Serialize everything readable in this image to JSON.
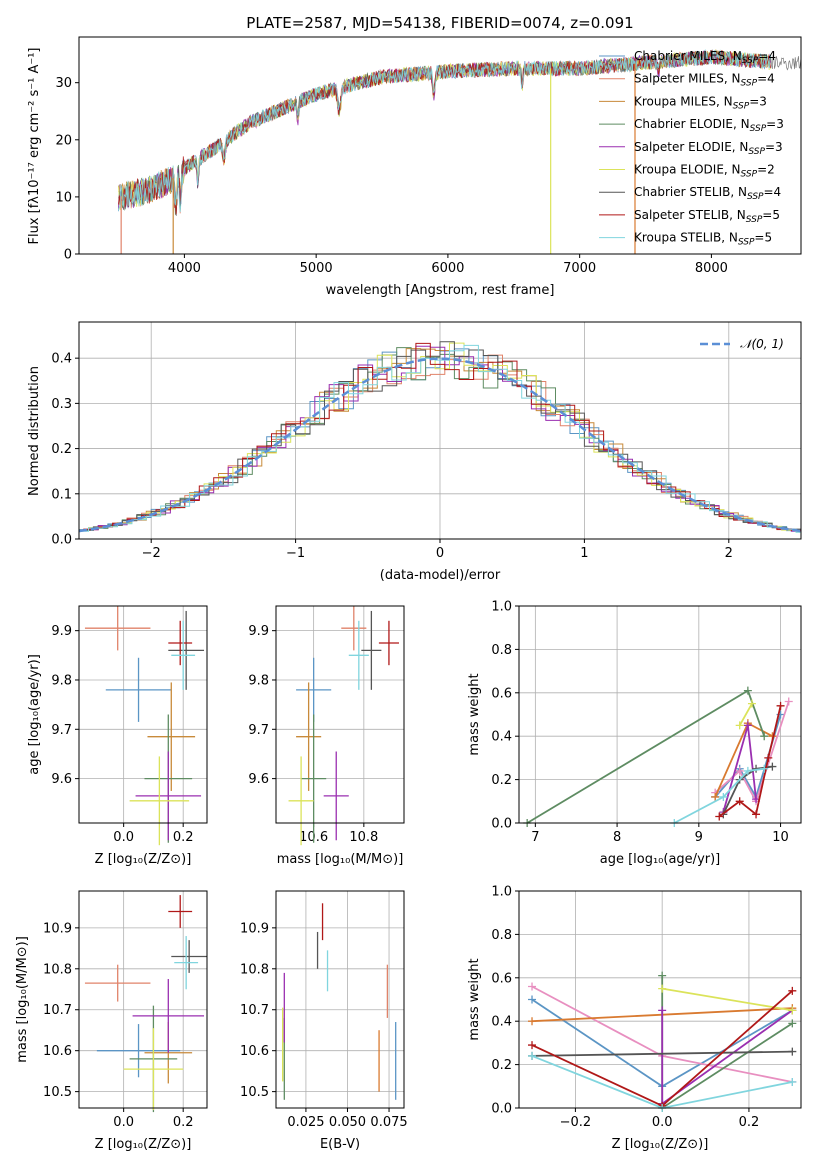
{
  "figure": {
    "title": "PLATE=2587, MJD=54138, FIBERID=0074, z=0.091"
  },
  "colors": [
    "#5b95c5",
    "#e0836a",
    "#c88a3a",
    "#5e8c62",
    "#9a2fb0",
    "#dbe35a",
    "#555555",
    "#b01818",
    "#80d5de"
  ],
  "chart_data": [
    {
      "id": "spectrum",
      "type": "line",
      "xlabel": "wavelength [Angstrom, rest frame]",
      "ylabel": "Flux [fλ10⁻¹⁷ erg cm⁻² s⁻¹ A⁻¹]",
      "xlim": [
        3200,
        8680
      ],
      "ylim": [
        0,
        38
      ],
      "xticks": [
        4000,
        5000,
        6000,
        7000,
        8000
      ],
      "yticks": [
        0,
        10,
        20,
        30
      ],
      "continuum": {
        "x": [
          3500,
          3700,
          3900,
          4000,
          4200,
          4500,
          5000,
          5500,
          6000,
          6500,
          7000,
          7500,
          8000,
          8500
        ],
        "y": [
          10,
          11,
          13,
          15,
          18,
          23,
          28,
          31,
          32,
          32.5,
          32.5,
          33.5,
          34.5,
          33.5
        ]
      },
      "legend_loc": "upper right",
      "legend": [
        {
          "label": "Chabrier MILES, N",
          "sub": "SSP",
          "eq": "=4",
          "color": "#5b95c5"
        },
        {
          "label": "Salpeter MILES, N",
          "sub": "SSP",
          "eq": "=4",
          "color": "#e0836a"
        },
        {
          "label": "Kroupa MILES, N",
          "sub": "SSP",
          "eq": "=3",
          "color": "#c88a3a"
        },
        {
          "label": "Chabrier ELODIE, N",
          "sub": "SSP",
          "eq": "=3",
          "color": "#5e8c62"
        },
        {
          "label": "Salpeter ELODIE, N",
          "sub": "SSP",
          "eq": "=3",
          "color": "#9a2fb0"
        },
        {
          "label": "Kroupa ELODIE, N",
          "sub": "SSP",
          "eq": "=2",
          "color": "#dbe35a"
        },
        {
          "label": "Chabrier STELIB, N",
          "sub": "SSP",
          "eq": "=4",
          "color": "#555555"
        },
        {
          "label": "Salpeter STELIB, N",
          "sub": "SSP",
          "eq": "=5",
          "color": "#b01818"
        },
        {
          "label": "Kroupa STELIB, N",
          "sub": "SSP",
          "eq": "=5",
          "color": "#80d5de"
        }
      ]
    },
    {
      "id": "residuals",
      "type": "histogram",
      "xlabel": "(data-model)/error",
      "ylabel": "Normed distribution",
      "xlim": [
        -2.5,
        2.5
      ],
      "ylim": [
        0,
        0.48
      ],
      "xticks": [
        -2,
        -1,
        0,
        1,
        2
      ],
      "yticks": [
        0.0,
        0.1,
        0.2,
        0.3,
        0.4
      ],
      "grid": true,
      "bin_width": 0.1,
      "reference_curve": {
        "name": "𝒩(0, 1)",
        "mean": 0,
        "sigma": 1,
        "color": "#5b8fd6"
      },
      "legend_loc": "upper right"
    },
    {
      "id": "age_vs_Z",
      "type": "errorbar",
      "xlabel": "Z [log₁₀(Z/Z⊙)]",
      "ylabel": "age  [log₁₀(age/yr)]",
      "xlim": [
        -0.15,
        0.28
      ],
      "ylim": [
        9.51,
        9.95
      ],
      "xticks": [
        0.0,
        0.2
      ],
      "yticks": [
        9.6,
        9.7,
        9.8,
        9.9
      ],
      "grid": true,
      "points": [
        {
          "x": 0.05,
          "xerr": 0.11,
          "y": 9.78,
          "yerr": 0.065,
          "color": "#5b95c5"
        },
        {
          "x": -0.02,
          "xerr": 0.11,
          "y": 9.905,
          "yerr": 0.045,
          "color": "#e0836a"
        },
        {
          "x": 0.16,
          "xerr": 0.08,
          "y": 9.685,
          "yerr": 0.11,
          "color": "#c88a3a"
        },
        {
          "x": 0.15,
          "xerr": 0.08,
          "y": 9.6,
          "yerr": 0.13,
          "color": "#5e8c62"
        },
        {
          "x": 0.15,
          "xerr": 0.11,
          "y": 9.565,
          "yerr": 0.09,
          "color": "#9a2fb0"
        },
        {
          "x": 0.12,
          "xerr": 0.1,
          "y": 9.555,
          "yerr": 0.09,
          "color": "#dbe35a"
        },
        {
          "x": 0.21,
          "xerr": 0.06,
          "y": 9.86,
          "yerr": 0.08,
          "color": "#555555"
        },
        {
          "x": 0.19,
          "xerr": 0.04,
          "y": 9.875,
          "yerr": 0.045,
          "color": "#b01818"
        },
        {
          "x": 0.2,
          "xerr": 0.04,
          "y": 9.85,
          "yerr": 0.07,
          "color": "#80d5de"
        }
      ]
    },
    {
      "id": "age_vs_mass",
      "type": "errorbar",
      "xlabel": "mass [log₁₀(M/M⊙)]",
      "ylabel": "",
      "xlim": [
        10.45,
        10.96
      ],
      "ylim": [
        9.51,
        9.95
      ],
      "xticks": [
        10.6,
        10.8
      ],
      "yticks": [
        9.6,
        9.7,
        9.8,
        9.9
      ],
      "grid": true,
      "points": [
        {
          "x": 10.6,
          "xerr": 0.07,
          "y": 9.78,
          "yerr": 0.065,
          "color": "#5b95c5"
        },
        {
          "x": 10.76,
          "xerr": 0.05,
          "y": 9.905,
          "yerr": 0.045,
          "color": "#e0836a"
        },
        {
          "x": 10.58,
          "xerr": 0.05,
          "y": 9.685,
          "yerr": 0.11,
          "color": "#c88a3a"
        },
        {
          "x": 10.6,
          "xerr": 0.05,
          "y": 9.6,
          "yerr": 0.13,
          "color": "#5e8c62"
        },
        {
          "x": 10.69,
          "xerr": 0.05,
          "y": 9.565,
          "yerr": 0.09,
          "color": "#9a2fb0"
        },
        {
          "x": 10.55,
          "xerr": 0.05,
          "y": 9.555,
          "yerr": 0.09,
          "color": "#dbe35a"
        },
        {
          "x": 10.83,
          "xerr": 0.04,
          "y": 9.86,
          "yerr": 0.08,
          "color": "#555555"
        },
        {
          "x": 10.9,
          "xerr": 0.04,
          "y": 9.875,
          "yerr": 0.045,
          "color": "#b01818"
        },
        {
          "x": 10.78,
          "xerr": 0.04,
          "y": 9.85,
          "yerr": 0.07,
          "color": "#80d5de"
        }
      ]
    },
    {
      "id": "weight_vs_age",
      "type": "line",
      "xlabel": "age  [log₁₀(age/yr)]",
      "ylabel": "mass weight",
      "xlim": [
        6.8,
        10.25
      ],
      "ylim": [
        0,
        1
      ],
      "xticks": [
        7,
        8,
        9,
        10
      ],
      "yticks": [
        0.0,
        0.2,
        0.4,
        0.6,
        0.8,
        1.0
      ],
      "grid": true,
      "series": [
        {
          "color": "#5b95c5",
          "x": [
            9.2,
            9.5,
            9.7,
            10.0
          ],
          "y": [
            0.12,
            0.25,
            0.12,
            0.5
          ]
        },
        {
          "color": "#e88fc0",
          "x": [
            9.2,
            9.5,
            9.7,
            10.1
          ],
          "y": [
            0.14,
            0.24,
            0.1,
            0.56
          ]
        },
        {
          "color": "#d97a30",
          "x": [
            9.2,
            9.6,
            9.9
          ],
          "y": [
            0.12,
            0.46,
            0.4
          ]
        },
        {
          "color": "#5e8c62",
          "x": [
            6.9,
            9.6,
            9.8
          ],
          "y": [
            0.0,
            0.61,
            0.4
          ]
        },
        {
          "color": "#9a2fb0",
          "x": [
            9.3,
            9.6,
            9.7
          ],
          "y": [
            0.05,
            0.45,
            0.11
          ]
        },
        {
          "color": "#dbe35a",
          "x": [
            9.5,
            9.65
          ],
          "y": [
            0.45,
            0.55
          ]
        },
        {
          "color": "#555555",
          "x": [
            9.3,
            9.5,
            9.7,
            9.9
          ],
          "y": [
            0.04,
            0.2,
            0.25,
            0.26
          ]
        },
        {
          "color": "#b01818",
          "x": [
            9.25,
            9.5,
            9.7,
            9.85,
            10.0
          ],
          "y": [
            0.03,
            0.1,
            0.04,
            0.3,
            0.54
          ]
        },
        {
          "color": "#80d5de",
          "x": [
            8.7,
            9.3,
            9.6,
            9.8
          ],
          "y": [
            0.0,
            0.12,
            0.24,
            0.25
          ]
        }
      ]
    },
    {
      "id": "mass_vs_Z",
      "type": "errorbar",
      "xlabel": "Z [log₁₀(Z/Z⊙)]",
      "ylabel": "mass [log₁₀(M/M⊙)]",
      "xlim": [
        -0.15,
        0.28
      ],
      "ylim": [
        10.46,
        10.99
      ],
      "xticks": [
        0.0,
        0.2
      ],
      "yticks": [
        10.5,
        10.6,
        10.7,
        10.8,
        10.9
      ],
      "grid": true,
      "points": [
        {
          "x": 0.05,
          "xerr": 0.14,
          "y": 10.6,
          "yerr": 0.065,
          "color": "#5b95c5"
        },
        {
          "x": -0.02,
          "xerr": 0.11,
          "y": 10.765,
          "yerr": 0.045,
          "color": "#e0836a"
        },
        {
          "x": 0.15,
          "xerr": 0.08,
          "y": 10.595,
          "yerr": 0.075,
          "color": "#c88a3a"
        },
        {
          "x": 0.1,
          "xerr": 0.08,
          "y": 10.58,
          "yerr": 0.13,
          "color": "#5e8c62"
        },
        {
          "x": 0.15,
          "xerr": 0.12,
          "y": 10.685,
          "yerr": 0.09,
          "color": "#9a2fb0"
        },
        {
          "x": 0.1,
          "xerr": 0.1,
          "y": 10.555,
          "yerr": 0.1,
          "color": "#dbe35a"
        },
        {
          "x": 0.22,
          "xerr": 0.06,
          "y": 10.83,
          "yerr": 0.04,
          "color": "#555555"
        },
        {
          "x": 0.19,
          "xerr": 0.04,
          "y": 10.94,
          "yerr": 0.04,
          "color": "#b01818"
        },
        {
          "x": 0.21,
          "xerr": 0.04,
          "y": 10.815,
          "yerr": 0.065,
          "color": "#80d5de"
        }
      ]
    },
    {
      "id": "mass_vs_EBV",
      "type": "errorbar",
      "xlabel": "E(B-V)",
      "ylabel": "",
      "xlim": [
        0.007,
        0.084
      ],
      "ylim": [
        10.46,
        10.99
      ],
      "xticks": [
        0.025,
        0.05,
        0.075
      ],
      "xtick_labels": [
        "0.025",
        "0.050",
        "0.075"
      ],
      "yticks": [
        10.5,
        10.6,
        10.7,
        10.8,
        10.9
      ],
      "grid": true,
      "points": [
        {
          "x": 0.079,
          "xerr": 0,
          "y": 10.575,
          "yerr": 0.095,
          "color": "#5b95c5"
        },
        {
          "x": 0.074,
          "xerr": 0,
          "y": 10.745,
          "yerr": 0.065,
          "color": "#e0836a"
        },
        {
          "x": 0.069,
          "xerr": 0,
          "y": 10.575,
          "yerr": 0.075,
          "color": "#d97a30"
        },
        {
          "x": 0.012,
          "xerr": 0,
          "y": 10.58,
          "yerr": 0.1,
          "color": "#5e8c62"
        },
        {
          "x": 0.012,
          "xerr": 0,
          "y": 10.705,
          "yerr": 0.085,
          "color": "#9a2fb0"
        },
        {
          "x": 0.011,
          "xerr": 0,
          "y": 10.615,
          "yerr": 0.09,
          "color": "#dbe35a"
        },
        {
          "x": 0.032,
          "xerr": 0,
          "y": 10.845,
          "yerr": 0.045,
          "color": "#555555"
        },
        {
          "x": 0.035,
          "xerr": 0,
          "y": 10.915,
          "yerr": 0.045,
          "color": "#b01818"
        },
        {
          "x": 0.038,
          "xerr": 0,
          "y": 10.795,
          "yerr": 0.05,
          "color": "#80d5de"
        }
      ]
    },
    {
      "id": "weight_vs_Z",
      "type": "line",
      "xlabel": "Z [log₁₀(Z/Z⊙)]",
      "ylabel": "mass weight",
      "xlim": [
        -0.33,
        0.32
      ],
      "ylim": [
        0,
        1
      ],
      "xticks": [
        -0.2,
        0.0,
        0.2
      ],
      "yticks": [
        0.0,
        0.2,
        0.4,
        0.6,
        0.8,
        1.0
      ],
      "grid": true,
      "series": [
        {
          "color": "#5b95c5",
          "x": [
            -0.3,
            0.0,
            0.3
          ],
          "y": [
            0.5,
            0.1,
            0.45
          ]
        },
        {
          "color": "#e88fc0",
          "x": [
            -0.3,
            0.0,
            0.3
          ],
          "y": [
            0.56,
            0.24,
            0.12
          ]
        },
        {
          "color": "#d97a30",
          "x": [
            -0.3,
            0.3
          ],
          "y": [
            0.4,
            0.46
          ]
        },
        {
          "color": "#5e8c62",
          "x": [
            0.0,
            0.0,
            0.3
          ],
          "y": [
            0.61,
            0.0,
            0.39
          ]
        },
        {
          "color": "#9a2fb0",
          "x": [
            0.0,
            0.0,
            0.3
          ],
          "y": [
            0.45,
            0.02,
            0.45
          ]
        },
        {
          "color": "#dbe35a",
          "x": [
            0.0,
            0.3
          ],
          "y": [
            0.55,
            0.45
          ]
        },
        {
          "color": "#555555",
          "x": [
            -0.3,
            0.3
          ],
          "y": [
            0.24,
            0.26
          ]
        },
        {
          "color": "#b01818",
          "x": [
            -0.3,
            0.0,
            0.3
          ],
          "y": [
            0.29,
            0.01,
            0.54
          ]
        },
        {
          "color": "#80d5de",
          "x": [
            -0.3,
            0.0,
            0.3
          ],
          "y": [
            0.24,
            0.0,
            0.12
          ]
        }
      ]
    }
  ]
}
